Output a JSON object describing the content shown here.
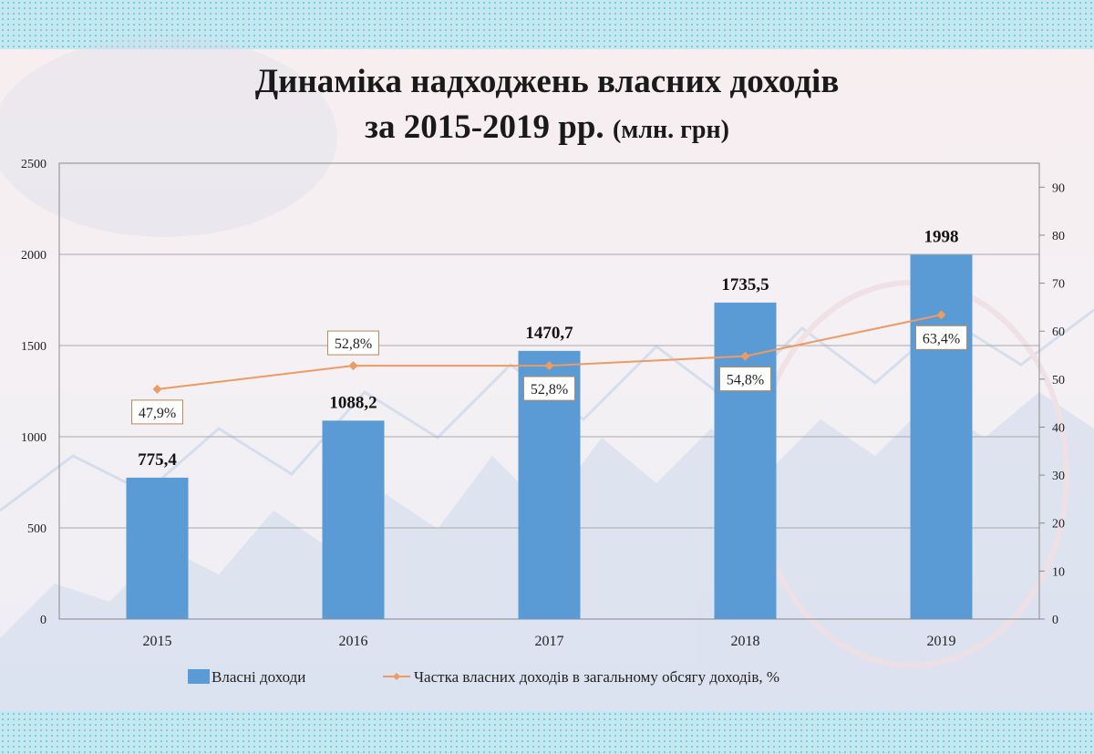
{
  "title": {
    "line1": "Динаміка надходжень власних доходів",
    "line2_main": "за 2015-2019 рр.",
    "line2_unit": "(млн. грн)"
  },
  "chart_data": {
    "type": "bar",
    "categories": [
      "2015",
      "2016",
      "2017",
      "2018",
      "2019"
    ],
    "series": [
      {
        "name": "Власні доходи",
        "type": "bar",
        "axis": "left",
        "color": "#5b9bd5",
        "values": [
          775.4,
          1088.2,
          1470.7,
          1735.5,
          1998
        ],
        "labels": [
          "775,4",
          "1088,2",
          "1470,7",
          "1735,5",
          "1998"
        ]
      },
      {
        "name": "Частка власних доходів в загальному обсягу доходів, %",
        "type": "line",
        "axis": "right",
        "color": "#ed9a63",
        "values": [
          47.9,
          52.8,
          52.8,
          54.8,
          63.4
        ],
        "labels": [
          "47,9%",
          "52,8%",
          "52,8%",
          "54,8%",
          "63,4%"
        ]
      }
    ],
    "y_left": {
      "ylim": [
        0,
        2500
      ],
      "ticks": [
        0,
        500,
        1000,
        1500,
        2000,
        2500
      ]
    },
    "y_right": {
      "ylim": [
        0,
        95
      ],
      "ticks": [
        0,
        10,
        20,
        30,
        40,
        50,
        60,
        70,
        80,
        90
      ]
    },
    "grid": true,
    "legend_position": "bottom"
  }
}
